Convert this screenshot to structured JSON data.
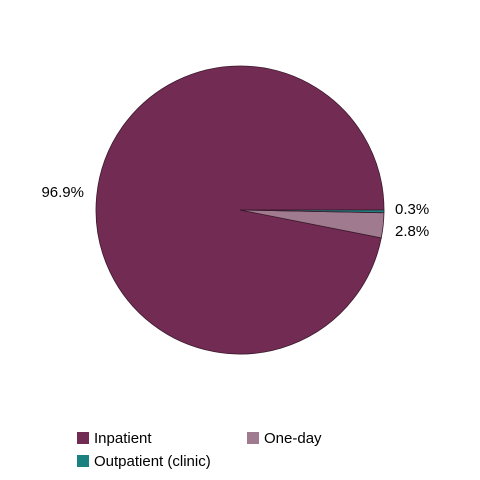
{
  "chart_data": {
    "type": "pie",
    "categories": [
      "Inpatient",
      "One-day",
      "Outpatient (clinic)"
    ],
    "values": [
      96.9,
      2.8,
      0.3
    ],
    "value_labels": [
      "96.9%",
      "2.8%",
      "0.3%"
    ],
    "colors": [
      "#722b52",
      "#a07a8f",
      "#1a8080"
    ]
  }
}
